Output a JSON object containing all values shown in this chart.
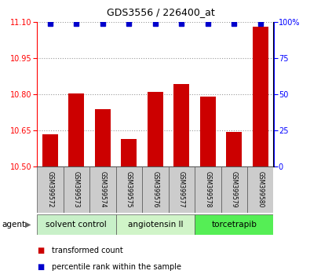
{
  "title": "GDS3556 / 226400_at",
  "samples": [
    "GSM399572",
    "GSM399573",
    "GSM399574",
    "GSM399575",
    "GSM399576",
    "GSM399577",
    "GSM399578",
    "GSM399579",
    "GSM399580"
  ],
  "bar_values": [
    10.635,
    10.805,
    10.74,
    10.615,
    10.81,
    10.845,
    10.79,
    10.645,
    11.08
  ],
  "percentile_values": [
    99,
    99,
    99,
    99,
    99,
    99,
    99,
    99,
    99
  ],
  "ylim_left": [
    10.5,
    11.1
  ],
  "ylim_right": [
    0,
    100
  ],
  "yticks_left": [
    10.5,
    10.65,
    10.8,
    10.95,
    11.1
  ],
  "yticks_right": [
    0,
    25,
    50,
    75,
    100
  ],
  "bar_color": "#cc0000",
  "dot_color": "#0000cc",
  "bar_width": 0.6,
  "groups": [
    {
      "label": "solvent control",
      "start": 0,
      "end": 3,
      "color": "#c8f0c8"
    },
    {
      "label": "angiotensin II",
      "start": 3,
      "end": 6,
      "color": "#d0f4c8"
    },
    {
      "label": "torcetrapib",
      "start": 6,
      "end": 9,
      "color": "#55ee55"
    }
  ],
  "agent_label": "agent",
  "legend_items": [
    {
      "color": "#cc0000",
      "label": "transformed count"
    },
    {
      "color": "#0000cc",
      "label": "percentile rank within the sample"
    }
  ],
  "grid_color": "#999999",
  "sample_box_color": "#cccccc",
  "background_color": "#ffffff",
  "title_fontsize": 9,
  "tick_fontsize": 7,
  "sample_fontsize": 5.5,
  "group_fontsize": 7.5,
  "legend_fontsize": 7
}
